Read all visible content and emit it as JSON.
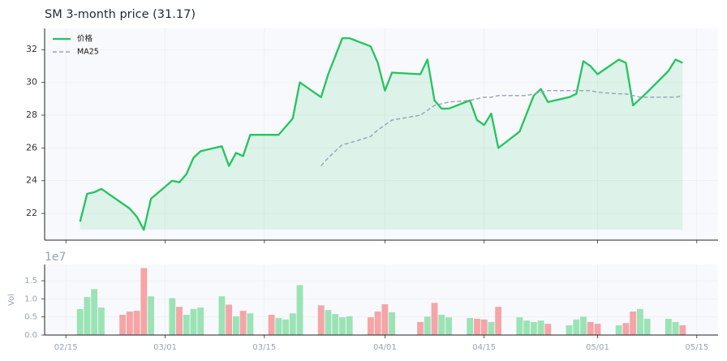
{
  "chart_data": [
    {
      "type": "line",
      "title": "SM  3-month price (31.17)",
      "x": [
        "02/17",
        "02/18",
        "02/19",
        "02/20",
        "02/23",
        "02/24",
        "02/25",
        "02/26",
        "02/27",
        "03/02",
        "03/03",
        "03/04",
        "03/05",
        "03/06",
        "03/09",
        "03/10",
        "03/11",
        "03/12",
        "03/13",
        "03/16",
        "03/17",
        "03/18",
        "03/19",
        "03/20",
        "03/23",
        "03/24",
        "03/25",
        "03/26",
        "03/27",
        "03/30",
        "03/31",
        "04/01",
        "04/02",
        "04/06",
        "04/07",
        "04/08",
        "04/09",
        "04/10",
        "04/13",
        "04/14",
        "04/15",
        "04/16",
        "04/17",
        "04/20",
        "04/21",
        "04/22",
        "04/23",
        "04/24",
        "04/27",
        "04/28",
        "04/29",
        "04/30",
        "05/01",
        "05/04",
        "05/05",
        "05/06",
        "05/07",
        "05/08",
        "05/11",
        "05/12",
        "05/13"
      ],
      "series": [
        {
          "name": "价格",
          "color": "#22c55e",
          "fill": true,
          "values": [
            21.5,
            23.2,
            23.3,
            23.5,
            22.6,
            22.3,
            21.8,
            21.0,
            22.9,
            24.0,
            23.9,
            24.4,
            25.4,
            25.8,
            26.1,
            24.9,
            25.7,
            25.5,
            26.8,
            26.8,
            26.8,
            27.3,
            27.8,
            30.0,
            29.1,
            30.5,
            31.6,
            32.7,
            32.7,
            32.2,
            31.2,
            29.5,
            30.6,
            30.5,
            31.4,
            28.9,
            28.4,
            28.4,
            28.9,
            27.7,
            27.4,
            28.1,
            26.0,
            27.0,
            28.1,
            29.2,
            29.6,
            28.8,
            29.1,
            29.3,
            31.3,
            31.0,
            30.5,
            31.4,
            31.2,
            28.6,
            29.0,
            29.4,
            30.7,
            31.4,
            31.2
          ]
        },
        {
          "name": "MA25",
          "color": "#94a3b8",
          "dash": true,
          "values": [
            null,
            null,
            null,
            null,
            null,
            null,
            null,
            null,
            null,
            null,
            null,
            null,
            null,
            null,
            null,
            null,
            null,
            null,
            null,
            null,
            null,
            null,
            null,
            null,
            24.9,
            25.4,
            25.8,
            26.2,
            26.3,
            26.7,
            27.1,
            27.4,
            27.7,
            28.0,
            28.3,
            28.6,
            28.7,
            28.8,
            28.9,
            29.0,
            29.1,
            29.1,
            29.2,
            29.2,
            29.2,
            29.3,
            29.4,
            29.5,
            29.5,
            29.5,
            29.5,
            29.5,
            29.4,
            29.3,
            29.3,
            29.2,
            29.1,
            29.1,
            29.1,
            29.1,
            29.2
          ]
        }
      ],
      "xlim": [
        "02/12",
        "05/18"
      ],
      "xticks": [
        "02/15",
        "03/01",
        "03/15",
        "04/01",
        "04/15",
        "05/01",
        "05/15"
      ],
      "ylim": [
        20.37,
        33.3
      ],
      "yticks": [
        22,
        24,
        26,
        28,
        30,
        32
      ],
      "grid": true,
      "legend": "upper left"
    },
    {
      "type": "bar",
      "ylabel": "Vol",
      "offset_label": "1e7",
      "x": [
        "02/17",
        "02/18",
        "02/19",
        "02/20",
        "02/23",
        "02/24",
        "02/25",
        "02/26",
        "02/27",
        "03/02",
        "03/03",
        "03/04",
        "03/05",
        "03/06",
        "03/09",
        "03/10",
        "03/11",
        "03/12",
        "03/13",
        "03/16",
        "03/17",
        "03/18",
        "03/19",
        "03/20",
        "03/23",
        "03/24",
        "03/25",
        "03/26",
        "03/27",
        "03/30",
        "03/31",
        "04/01",
        "04/02",
        "04/06",
        "04/07",
        "04/08",
        "04/09",
        "04/10",
        "04/13",
        "04/14",
        "04/15",
        "04/16",
        "04/17",
        "04/20",
        "04/21",
        "04/22",
        "04/23",
        "04/24",
        "04/27",
        "04/28",
        "04/29",
        "04/30",
        "05/01",
        "05/04",
        "05/05",
        "05/06",
        "05/07",
        "05/08",
        "05/11",
        "05/12",
        "05/13"
      ],
      "values": [
        0.72,
        1.05,
        1.27,
        0.76,
        0.56,
        0.65,
        0.67,
        1.85,
        1.07,
        1.02,
        0.78,
        0.56,
        0.72,
        0.76,
        1.07,
        0.84,
        0.52,
        0.67,
        0.6,
        0.56,
        0.47,
        0.43,
        0.6,
        1.38,
        0.82,
        0.69,
        0.58,
        0.49,
        0.52,
        0.49,
        0.65,
        0.85,
        0.63,
        0.36,
        0.51,
        0.89,
        0.56,
        0.49,
        0.47,
        0.45,
        0.43,
        0.36,
        0.78,
        0.49,
        0.4,
        0.36,
        0.4,
        0.31,
        0.27,
        0.43,
        0.51,
        0.36,
        0.31,
        0.27,
        0.33,
        0.65,
        0.72,
        0.45,
        0.45,
        0.36,
        0.27
      ],
      "colors": [
        "#9be3b5",
        "#9be3b5",
        "#9be3b5",
        "#9be3b5",
        "#f5a5a7",
        "#f5a5a7",
        "#f5a5a7",
        "#f5a5a7",
        "#9be3b5",
        "#9be3b5",
        "#f5a5a7",
        "#9be3b5",
        "#9be3b5",
        "#9be3b5",
        "#9be3b5",
        "#f5a5a7",
        "#9be3b5",
        "#f5a5a7",
        "#9be3b5",
        "#f5a5a7",
        "#9be3b5",
        "#9be3b5",
        "#9be3b5",
        "#9be3b5",
        "#f5a5a7",
        "#9be3b5",
        "#9be3b5",
        "#9be3b5",
        "#9be3b5",
        "#f5a5a7",
        "#f5a5a7",
        "#f5a5a7",
        "#9be3b5",
        "#f5a5a7",
        "#9be3b5",
        "#f5a5a7",
        "#9be3b5",
        "#9be3b5",
        "#9be3b5",
        "#f5a5a7",
        "#f5a5a7",
        "#9be3b5",
        "#f5a5a7",
        "#9be3b5",
        "#9be3b5",
        "#9be3b5",
        "#9be3b5",
        "#f5a5a7",
        "#9be3b5",
        "#9be3b5",
        "#9be3b5",
        "#f5a5a7",
        "#f5a5a7",
        "#9be3b5",
        "#f5a5a7",
        "#f5a5a7",
        "#9be3b5",
        "#9be3b5",
        "#9be3b5",
        "#9be3b5",
        "#f5a5a7"
      ],
      "xlim": [
        "02/12",
        "05/18"
      ],
      "xticks": [
        "02/15",
        "03/01",
        "03/15",
        "04/01",
        "04/15",
        "05/01",
        "05/15"
      ],
      "ylim": [
        0,
        1.95
      ],
      "yticks": [
        {
          "value": 0,
          "label": "0.0"
        },
        {
          "value": 0.5,
          "label": "0.5"
        },
        {
          "value": 1,
          "label": "1.0"
        },
        {
          "value": 1.5,
          "label": "1.5"
        }
      ],
      "grid": true
    }
  ]
}
